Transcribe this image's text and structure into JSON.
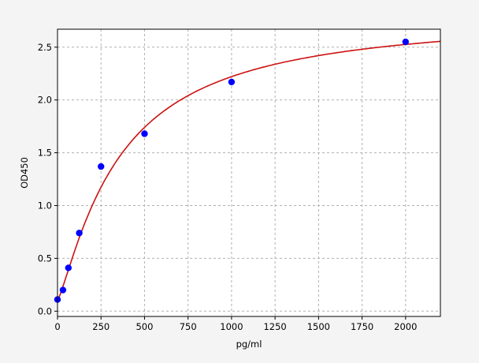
{
  "chart_data": {
    "type": "scatter",
    "title": "",
    "xlabel": "pg/ml",
    "ylabel": "OD450",
    "xlim": [
      0,
      2200
    ],
    "ylim": [
      -0.05,
      2.67
    ],
    "grid": true,
    "x_ticks": [
      0,
      250,
      500,
      750,
      1000,
      1250,
      1500,
      1750,
      2000
    ],
    "x_tick_labels": [
      "0",
      "250",
      "500",
      "750",
      "1000",
      "1250",
      "1500",
      "1750",
      "2000"
    ],
    "y_ticks": [
      0,
      0.5,
      1,
      1.5,
      2,
      2.5
    ],
    "y_tick_labels": [
      "0.0",
      "0.5",
      "1.0",
      "1.5",
      "2.0",
      "2.5"
    ],
    "series": [
      {
        "kind": "points",
        "color": "#0000ff",
        "x": [
          0,
          31.25,
          62.5,
          125,
          250,
          500,
          1000,
          2000
        ],
        "y": [
          0.11,
          0.2,
          0.41,
          0.74,
          1.37,
          1.68,
          2.17,
          2.55
        ]
      },
      {
        "kind": "fit-curve",
        "color": "#cc1111"
      }
    ]
  }
}
